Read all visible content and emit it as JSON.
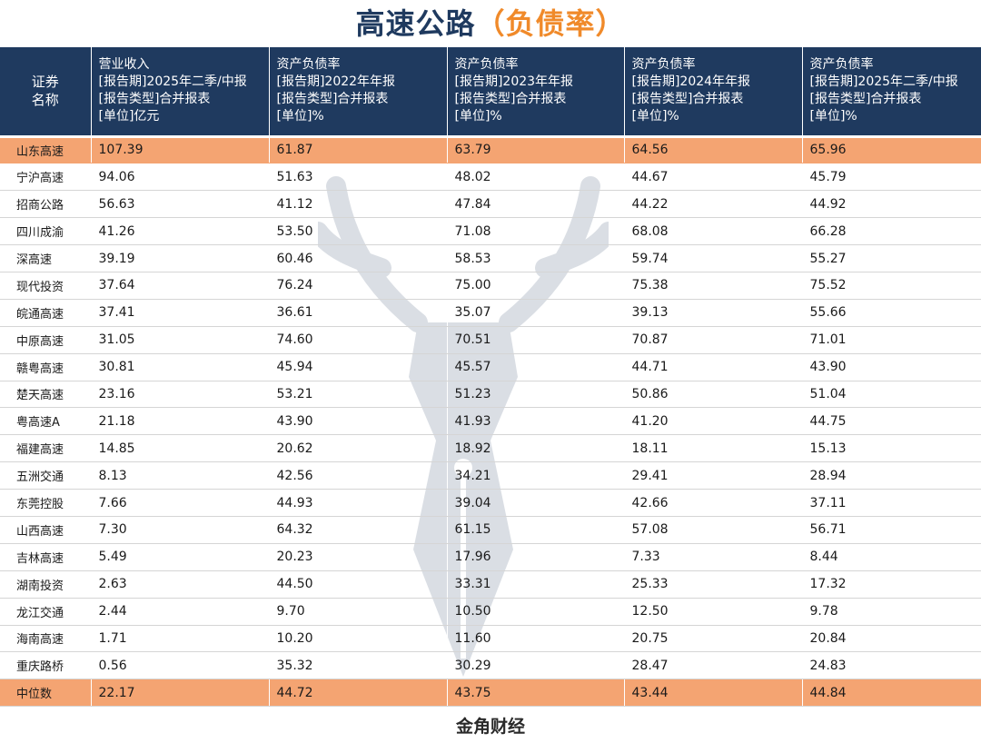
{
  "title": {
    "main": "高速公路",
    "paren": "（负债率）"
  },
  "headers": [
    [
      "证券",
      "名称"
    ],
    [
      "营业收入",
      "[报告期]2025年二季/中报",
      "[报告类型]合并报表",
      "[单位]亿元"
    ],
    [
      "资产负债率",
      "[报告期]2022年年报",
      "[报告类型]合并报表",
      "[单位]%"
    ],
    [
      "资产负债率",
      "[报告期]2023年年报",
      "[报告类型]合并报表",
      "[单位]%"
    ],
    [
      "资产负债率",
      "[报告期]2024年年报",
      "[报告类型]合并报表",
      "[单位]%"
    ],
    [
      "资产负债率",
      "[报告期]2025年二季/中报",
      "[报告类型]合并报表",
      "[单位]%"
    ]
  ],
  "rows": [
    [
      "山东高速",
      "107.39",
      "61.87",
      "63.79",
      "64.56",
      "65.96"
    ],
    [
      "宁沪高速",
      "94.06",
      "51.63",
      "48.02",
      "44.67",
      "45.79"
    ],
    [
      "招商公路",
      "56.63",
      "41.12",
      "47.84",
      "44.22",
      "44.92"
    ],
    [
      "四川成渝",
      "41.26",
      "53.50",
      "71.08",
      "68.08",
      "66.28"
    ],
    [
      "深高速",
      "39.19",
      "60.46",
      "58.53",
      "59.74",
      "55.27"
    ],
    [
      "现代投资",
      "37.64",
      "76.24",
      "75.00",
      "75.38",
      "75.52"
    ],
    [
      "皖通高速",
      "37.41",
      "36.61",
      "35.07",
      "39.13",
      "55.66"
    ],
    [
      "中原高速",
      "31.05",
      "74.60",
      "70.51",
      "70.87",
      "71.01"
    ],
    [
      "赣粤高速",
      "30.81",
      "45.94",
      "45.57",
      "44.71",
      "43.90"
    ],
    [
      "楚天高速",
      "23.16",
      "53.21",
      "51.23",
      "50.86",
      "51.04"
    ],
    [
      "粤高速A",
      "21.18",
      "43.90",
      "41.93",
      "41.20",
      "44.75"
    ],
    [
      "福建高速",
      "14.85",
      "20.62",
      "18.92",
      "18.11",
      "15.13"
    ],
    [
      "五洲交通",
      "8.13",
      "42.56",
      "34.21",
      "29.41",
      "28.94"
    ],
    [
      "东莞控股",
      "7.66",
      "44.93",
      "39.04",
      "42.66",
      "37.11"
    ],
    [
      "山西高速",
      "7.30",
      "64.32",
      "61.15",
      "57.08",
      "56.71"
    ],
    [
      "吉林高速",
      "5.49",
      "20.23",
      "17.96",
      "7.33",
      "8.44"
    ],
    [
      "湖南投资",
      "2.63",
      "44.50",
      "33.31",
      "25.33",
      "17.32"
    ],
    [
      "龙江交通",
      "2.44",
      "9.70",
      "10.50",
      "12.50",
      "9.78"
    ],
    [
      "海南高速",
      "1.71",
      "10.20",
      "11.60",
      "20.75",
      "20.84"
    ],
    [
      "重庆路桥",
      "0.56",
      "35.32",
      "30.29",
      "28.47",
      "24.83"
    ]
  ],
  "median": [
    "中位数",
    "22.17",
    "44.72",
    "43.75",
    "43.44",
    "44.84"
  ],
  "footer": {
    "brand": "金角财经"
  },
  "colors": {
    "header_bg": "#1f3a5f",
    "highlight": "#f4a472",
    "title_main": "#1f3a5f",
    "title_paren": "#f08a2a"
  }
}
